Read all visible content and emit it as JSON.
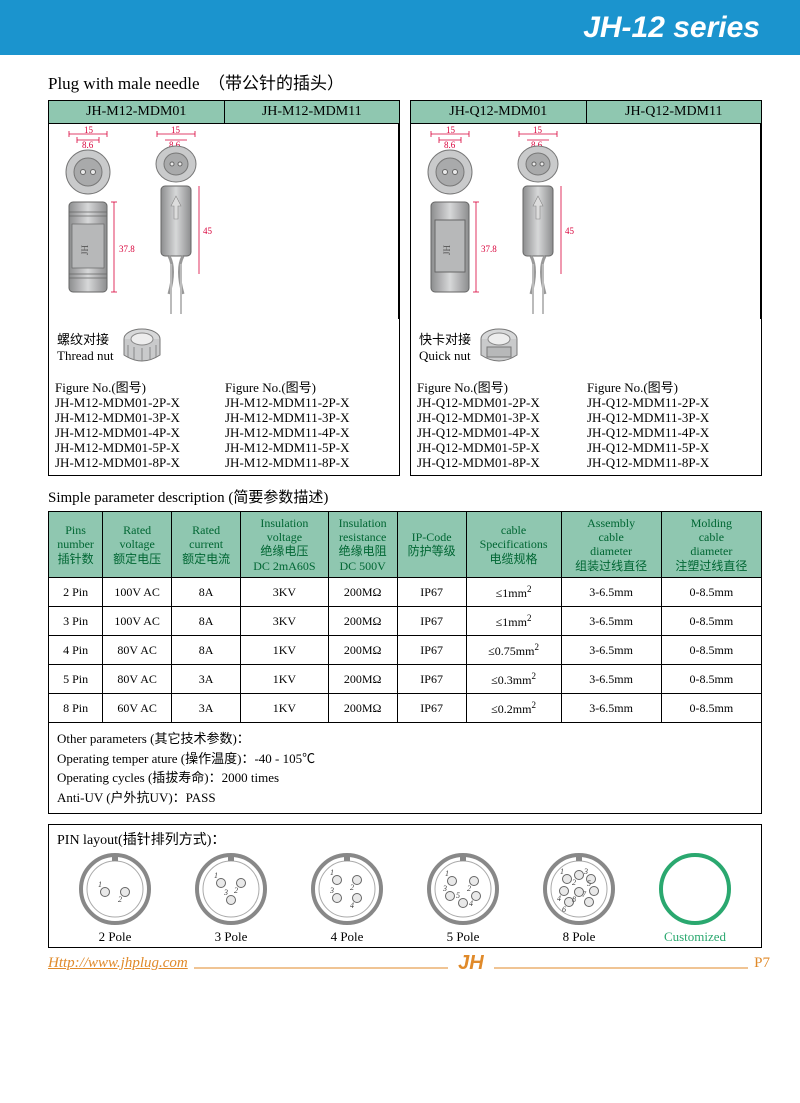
{
  "header": {
    "title": "JH-12 series"
  },
  "sections": {
    "plug_title_en": "Plug with male needle",
    "plug_title_zh": "（带公针的插头）"
  },
  "colors": {
    "brand_blue": "#1b94ce",
    "table_green": "#8fc7b0",
    "th_text": "#006633",
    "orange": "#e08a2a",
    "dim_red": "#d9003a",
    "customized_green": "#2aa86f"
  },
  "products": [
    {
      "models": [
        "JH-M12-MDM01",
        "JH-M12-MDM11"
      ],
      "nut_label_zh": "螺纹对接",
      "nut_label_en": "Thread nut",
      "dims": {
        "w_outer": "15",
        "w_inner": "8.6",
        "h_left": "37.8",
        "h_right": "45"
      },
      "figure_label": "Figure No.(图号)",
      "figures_left": [
        "JH-M12-MDM01-2P-X",
        "JH-M12-MDM01-3P-X",
        "JH-M12-MDM01-4P-X",
        "JH-M12-MDM01-5P-X",
        "JH-M12-MDM01-8P-X"
      ],
      "figures_right": [
        "JH-M12-MDM11-2P-X",
        "JH-M12-MDM11-3P-X",
        "JH-M12-MDM11-4P-X",
        "JH-M12-MDM11-5P-X",
        "JH-M12-MDM11-8P-X"
      ]
    },
    {
      "models": [
        "JH-Q12-MDM01",
        "JH-Q12-MDM11"
      ],
      "nut_label_zh": "快卡对接",
      "nut_label_en": "Quick nut",
      "dims": {
        "w_outer": "15",
        "w_inner": "8.6",
        "h_left": "37.8",
        "h_right": "45"
      },
      "figure_label": "Figure No.(图号)",
      "figures_left": [
        "JH-Q12-MDM01-2P-X",
        "JH-Q12-MDM01-3P-X",
        "JH-Q12-MDM01-4P-X",
        "JH-Q12-MDM01-5P-X",
        "JH-Q12-MDM01-8P-X"
      ],
      "figures_right": [
        "JH-Q12-MDM11-2P-X",
        "JH-Q12-MDM11-3P-X",
        "JH-Q12-MDM11-4P-X",
        "JH-Q12-MDM11-5P-X",
        "JH-Q12-MDM11-8P-X"
      ]
    }
  ],
  "param_title": "Simple parameter description (简要参数描述)",
  "param_headers": [
    [
      "Pins",
      "number",
      "插针数"
    ],
    [
      "Rated",
      "voltage",
      "额定电压"
    ],
    [
      "Rated",
      "current",
      "额定电流"
    ],
    [
      "Insulation",
      "voltage",
      "绝缘电压",
      "DC 2mA60S"
    ],
    [
      "Insulation",
      "resistance",
      "绝缘电阻",
      "DC 500V"
    ],
    [
      "IP-Code",
      "防护等级"
    ],
    [
      "cable",
      "Specifications",
      "电缆规格"
    ],
    [
      "Assembly",
      "cable",
      "diameter",
      "组装过线直径"
    ],
    [
      "Molding",
      "cable",
      "diameter",
      "注塑过线直径"
    ]
  ],
  "param_rows": [
    [
      "2 Pin",
      "100V AC",
      "8A",
      "3KV",
      "200MΩ",
      "IP67",
      "≤1mm²",
      "3-6.5mm",
      "0-8.5mm"
    ],
    [
      "3 Pin",
      "100V AC",
      "8A",
      "3KV",
      "200MΩ",
      "IP67",
      "≤1mm²",
      "3-6.5mm",
      "0-8.5mm"
    ],
    [
      "4 Pin",
      "80V AC",
      "8A",
      "1KV",
      "200MΩ",
      "IP67",
      "≤0.75mm²",
      "3-6.5mm",
      "0-8.5mm"
    ],
    [
      "5 Pin",
      "80V AC",
      "3A",
      "1KV",
      "200MΩ",
      "IP67",
      "≤0.3mm²",
      "3-6.5mm",
      "0-8.5mm"
    ],
    [
      "8 Pin",
      "60V AC",
      "3A",
      "1KV",
      "200MΩ",
      "IP67",
      "≤0.2mm²",
      "3-6.5mm",
      "0-8.5mm"
    ]
  ],
  "other_params": {
    "heading": "Other parameters (其它技术参数)：",
    "lines": [
      "Operating temper ature (操作温度)：-40 - 105℃",
      "Operating cycles (插拔寿命)：2000 times",
      "Anti-UV (户外抗UV)：PASS"
    ]
  },
  "pin_layout": {
    "title": "PIN layout(插针排列方式)：",
    "items": [
      "2 Pole",
      "3 Pole",
      "4 Pole",
      "5 Pole",
      "8 Pole",
      "Customized"
    ]
  },
  "footer": {
    "url": "Http://www.jhplug.com",
    "page": "P7"
  }
}
